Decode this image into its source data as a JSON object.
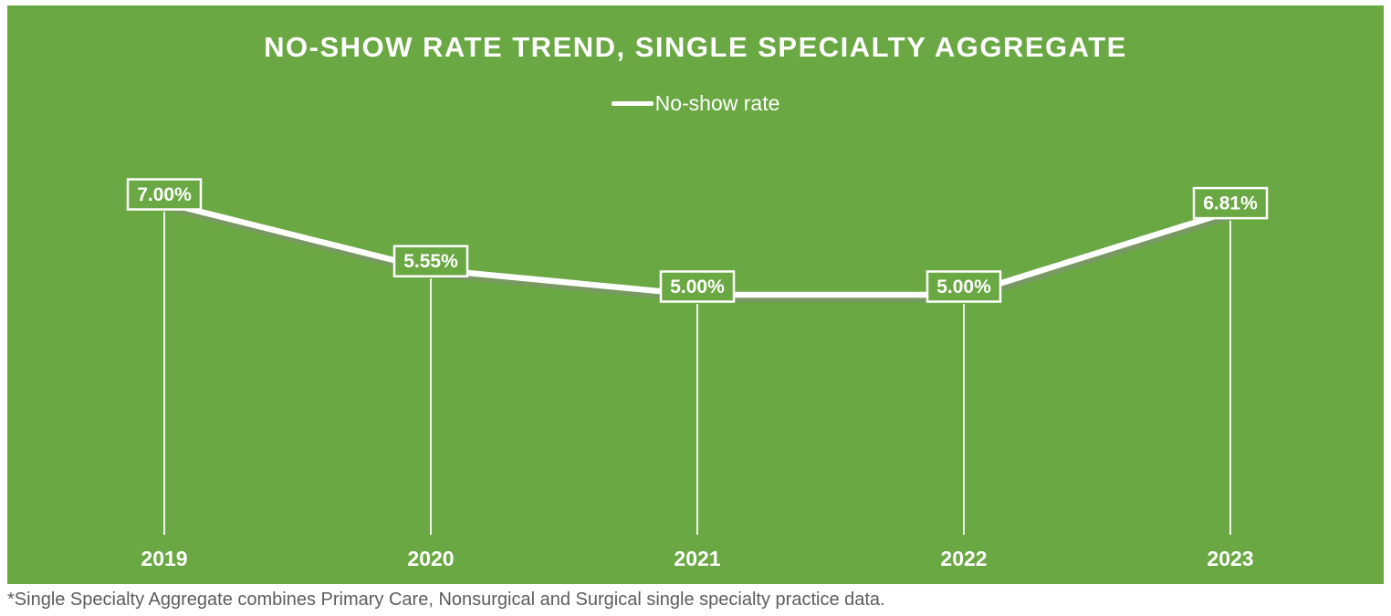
{
  "chart_data": {
    "type": "line",
    "title": "NO-SHOW RATE TREND, SINGLE SPECIALTY AGGREGATE",
    "categories": [
      "2019",
      "2020",
      "2021",
      "2022",
      "2023"
    ],
    "series": [
      {
        "name": "No-show rate",
        "values": [
          7.0,
          5.55,
          5.0,
          5.0,
          6.81
        ]
      }
    ],
    "data_labels": [
      "7.00%",
      "5.55%",
      "5.00%",
      "5.00%",
      "6.81%"
    ],
    "xlabel": "",
    "ylabel": "",
    "y_axis_visible": false,
    "grid": false,
    "legend_position": "top",
    "colors": {
      "background": "#6AA843",
      "line": "#ffffff",
      "line_shadow": "#8a8a8a",
      "label_box_border": "#ffffff",
      "label_text": "#ffffff",
      "axis_label_text": "#ffffff"
    }
  },
  "footnote": "*Single Specialty Aggregate combines Primary Care, Nonsurgical and Surgical single specialty practice data."
}
